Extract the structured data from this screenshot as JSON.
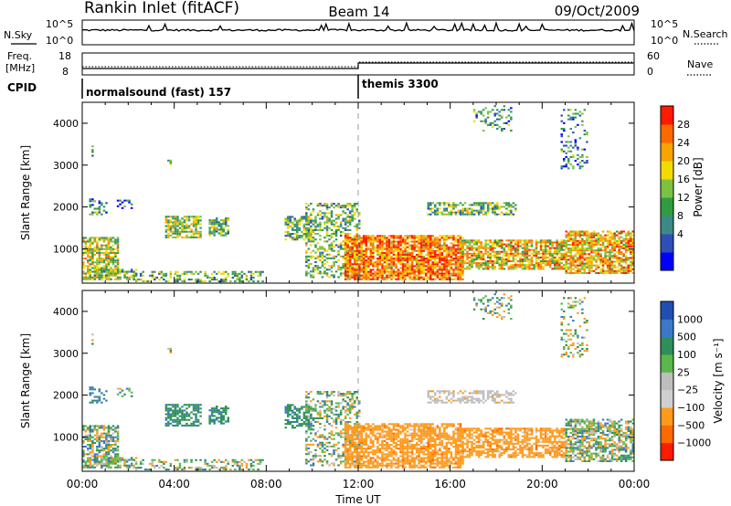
{
  "header": {
    "station": "Rankin Inlet (fitACF)",
    "beam": "Beam 14",
    "date": "09/Oct/2009"
  },
  "noise_panel": {
    "left_label": "N.Sky",
    "right_label": "N.Search",
    "left_ticks": [
      "10^5",
      "10^0"
    ],
    "right_ticks": [
      "10^5",
      "10^0"
    ]
  },
  "freq_panel": {
    "left_label_1": "Freq.",
    "left_label_2": "[MHz]",
    "right_label": "Nave",
    "left_ticks": [
      "18",
      "8"
    ],
    "right_ticks": [
      "60",
      "0"
    ]
  },
  "cpid_panel": {
    "label": "CPID",
    "modes": [
      {
        "name": "normalsound (fast) 157",
        "start_hour": 0
      },
      {
        "name": "themis 3300",
        "start_hour": 12
      }
    ]
  },
  "chart_data": [
    {
      "type": "heatmap",
      "name": "power",
      "ylabel": "Slant Range [km]",
      "xlabel": "",
      "x_ticks": [
        "00:00",
        "04:00",
        "08:00",
        "12:00",
        "16:00",
        "20:00",
        "00:00"
      ],
      "x_range_hours": [
        0,
        24
      ],
      "ylim": [
        180,
        4500
      ],
      "y_ticks": [
        1000,
        2000,
        3000,
        4000
      ],
      "colorbar": {
        "label": "Power [dB]",
        "ticks": [
          "4",
          "8",
          "12",
          "16",
          "20",
          "24",
          "28"
        ],
        "range": [
          0,
          30
        ],
        "colors": [
          "#0000ff",
          "#2e4fb8",
          "#3b8a86",
          "#2f9d3f",
          "#7cc242",
          "#f2dc00",
          "#f7a300",
          "#ff6a00",
          "#ff1a00"
        ]
      }
    },
    {
      "type": "heatmap",
      "name": "velocity",
      "ylabel": "Slant Range [km]",
      "xlabel": "Time UT",
      "x_ticks": [
        "00:00",
        "04:00",
        "08:00",
        "12:00",
        "16:00",
        "20:00",
        "00:00"
      ],
      "x_range_hours": [
        0,
        24
      ],
      "ylim": [
        180,
        4500
      ],
      "y_ticks": [
        1000,
        2000,
        3000,
        4000
      ],
      "colorbar": {
        "label": "Velocity [m s⁻¹]",
        "ticks": [
          "1000",
          "500",
          "100",
          "25",
          "−25",
          "−100",
          "−500",
          "−1000"
        ],
        "colors": [
          "#1f4fb5",
          "#3b78c8",
          "#2f8f58",
          "#5ab84a",
          "#bdbdbd",
          "#cfcfcf",
          "#ff9a1a",
          "#ff6a00",
          "#ff1a00"
        ]
      }
    }
  ]
}
